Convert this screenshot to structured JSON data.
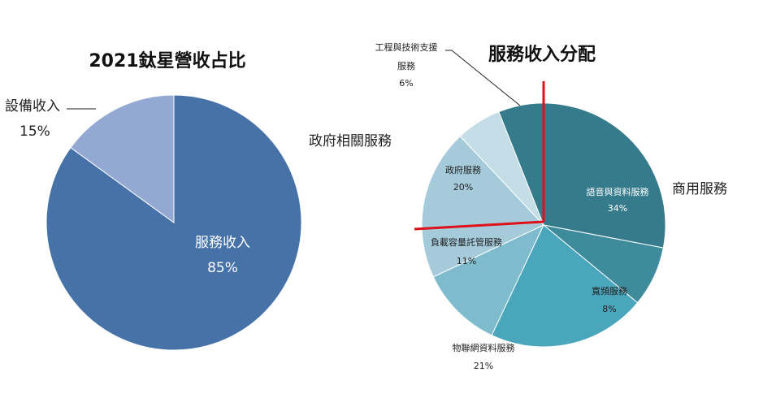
{
  "chart_data": [
    {
      "type": "pie",
      "title": "2021鈦星營收占比",
      "slices": [
        {
          "label": "服務收入",
          "value": 85,
          "value_text": "85%",
          "color": "#4672a8"
        },
        {
          "label": "設備收入",
          "value": 15,
          "value_text": "15%",
          "color": "#93a8d2"
        }
      ]
    },
    {
      "type": "pie",
      "title": "服務收入分配",
      "slices": [
        {
          "label": "語音與資料服務",
          "value": 34,
          "value_text": "34%",
          "color": "#357b8b"
        },
        {
          "label": "寬頻服務",
          "value": 8,
          "value_text": "8%",
          "color": "#3e8b9c"
        },
        {
          "label": "物聯網資料服務",
          "value": 21,
          "value_text": "21%",
          "color": "#4aa6bb"
        },
        {
          "label": "負載容量託管服務",
          "value": 11,
          "value_text": "11%",
          "color": "#7ebccd"
        },
        {
          "label": "政府服務",
          "value": 20,
          "value_text": "20%",
          "color": "#a5cbdb"
        },
        {
          "label": "工程與技術支援服務",
          "value": 6,
          "value_text": "6%",
          "color": "#c4dde6"
        }
      ],
      "annotations": {
        "commercial_label": "商用服務",
        "government_label": "政府相關服務",
        "divider_color": "#e0101a"
      }
    }
  ]
}
